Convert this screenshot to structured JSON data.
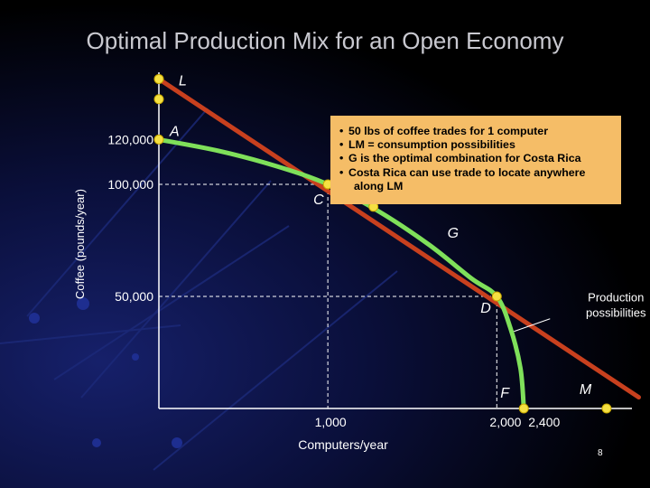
{
  "slide": {
    "title": "Optimal Production Mix for an Open Economy",
    "page_number": "8",
    "note_bullets": [
      "50 lbs of coffee trades for 1 computer",
      "LM = consumption possibilities",
      "G is the optimal combination for Costa Rica",
      "Costa Rica can use trade to locate anywhere",
      "along LM"
    ]
  },
  "chart_data": {
    "type": "line",
    "title": "Optimal Production Mix for an Open Economy",
    "xlabel": "Computers/year",
    "ylabel": "Coffee (pounds/year)",
    "xlim": [
      0,
      2800
    ],
    "ylim": [
      0,
      150000
    ],
    "x_tick_labels": [
      {
        "value": 1000,
        "label": "1,000"
      },
      {
        "value": 2150,
        "label": "2,000  2,400"
      }
    ],
    "y_tick_labels": [
      {
        "value": 120000,
        "label": "120,000"
      },
      {
        "value": 100000,
        "label": "100,000"
      },
      {
        "value": 50000,
        "label": "50,000"
      }
    ],
    "series": [
      {
        "name": "Production possibilities",
        "color": "#7fe05a",
        "points": [
          {
            "x": 0,
            "y": 120000
          },
          {
            "x": 350,
            "y": 115000
          },
          {
            "x": 700,
            "y": 108000
          },
          {
            "x": 1000,
            "y": 100000
          },
          {
            "x": 1300,
            "y": 88000
          },
          {
            "x": 1600,
            "y": 73000
          },
          {
            "x": 1850,
            "y": 58000
          },
          {
            "x": 2000,
            "y": 50000
          },
          {
            "x": 2080,
            "y": 36000
          },
          {
            "x": 2140,
            "y": 18000
          },
          {
            "x": 2160,
            "y": 0
          }
        ]
      },
      {
        "name": "",
        "color": "#c8401e",
        "points": [
          {
            "x": 0,
            "y": 147000
          },
          {
            "x": 2840,
            "y": 5000
          }
        ]
      }
    ],
    "marked_points": [
      {
        "label": "L",
        "x": 0,
        "y": 147000
      },
      {
        "label": "",
        "x": 0,
        "y": 138000
      },
      {
        "label": "A",
        "x": 0,
        "y": 120000
      },
      {
        "label": "C",
        "x": 1000,
        "y": 100000
      },
      {
        "label": "G",
        "x": 1270,
        "y": 90000
      },
      {
        "label": "D",
        "x": 2000,
        "y": 50000
      },
      {
        "label": "F",
        "x": 2160,
        "y": 0
      },
      {
        "label": "M",
        "x": 2650,
        "y": 0
      }
    ],
    "annotations": [
      {
        "text": "Production possibilities",
        "x": 2080,
        "y": 36000
      }
    ],
    "dashed_guides": [
      {
        "x": 1000,
        "y": 100000
      },
      {
        "x": 2000,
        "y": 50000
      }
    ]
  }
}
